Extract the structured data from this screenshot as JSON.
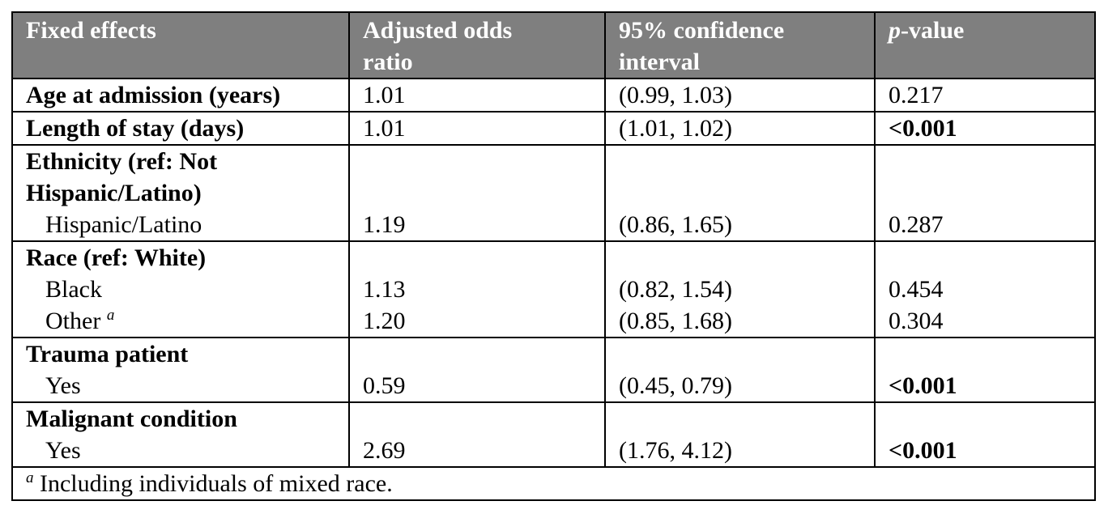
{
  "header": {
    "col1": "Fixed effects",
    "col2_line1": "Adjusted odds",
    "col2_line2": "ratio",
    "col3_line1": "95% confidence",
    "col3_line2": "interval",
    "col4_prefix": "p",
    "col4_suffix": "-value"
  },
  "rows": {
    "age": {
      "label": "Age at admission (years)",
      "or": "1.01",
      "ci": "(0.99, 1.03)",
      "p": "0.217"
    },
    "los": {
      "label": "Length of stay (days)",
      "or": "1.01",
      "ci": "(1.01, 1.02)",
      "p": "<0.001"
    },
    "ethnicity": {
      "label_line1": "Ethnicity (ref: Not",
      "label_line2": "Hispanic/Latino)",
      "sub_label": "Hispanic/Latino",
      "or": "1.19",
      "ci": "(0.86, 1.65)",
      "p": "0.287"
    },
    "race": {
      "label": "Race (ref: White)",
      "black": {
        "label": "Black",
        "or": "1.13",
        "ci": "(0.82, 1.54)",
        "p": "0.454"
      },
      "other": {
        "label": "Other ",
        "sup": "a",
        "or": "1.20",
        "ci": "(0.85, 1.68)",
        "p": "0.304"
      }
    },
    "trauma": {
      "label": "Trauma patient",
      "sub_label": "Yes",
      "or": "0.59",
      "ci": "(0.45, 0.79)",
      "p": "<0.001"
    },
    "malignant": {
      "label": "Malignant condition",
      "sub_label": "Yes",
      "or": "2.69",
      "ci": "(1.76, 4.12)",
      "p": "<0.001"
    }
  },
  "footnote": {
    "sup": "a",
    "text": " Including individuals of mixed race."
  }
}
